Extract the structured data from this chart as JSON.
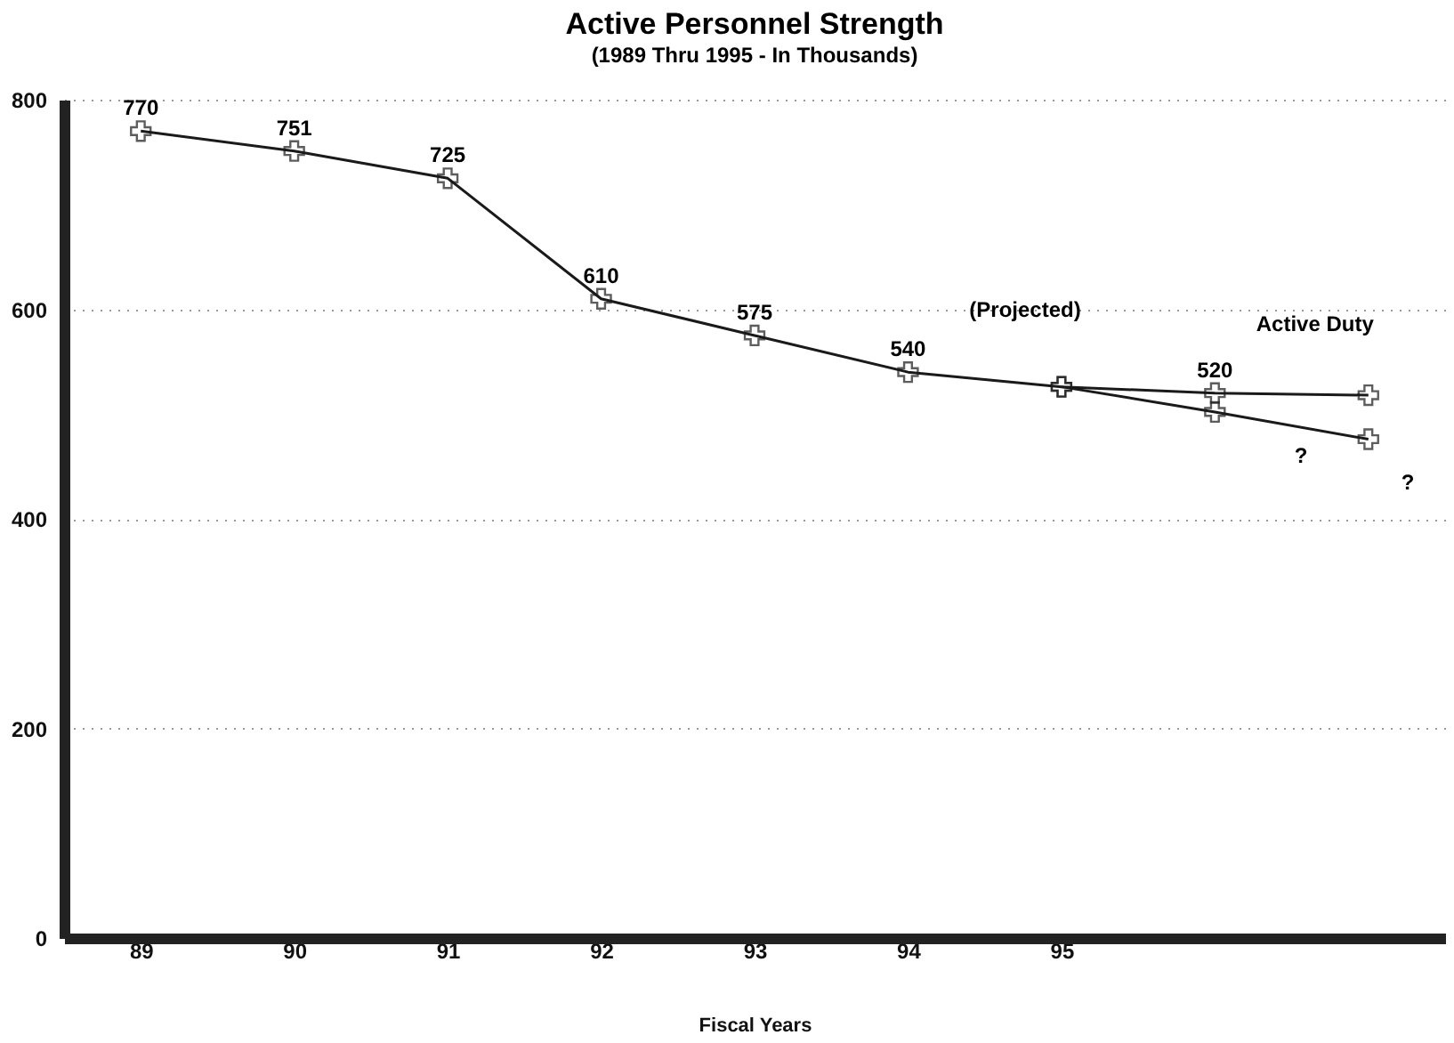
{
  "chart_data": {
    "type": "line",
    "title": "Active Personnel Strength",
    "subtitle": "(1989 Thru 1995 - In Thousands)",
    "xlabel": "Fiscal Years",
    "categories": [
      "89",
      "90",
      "91",
      "92",
      "93",
      "94",
      "95",
      null,
      null
    ],
    "series": [
      {
        "name": "Active Duty",
        "color": "#1a1a1a",
        "values": [
          770,
          751,
          725,
          610,
          575,
          540,
          526,
          520,
          518
        ],
        "value_labels": [
          "770",
          "751",
          "725",
          "610",
          "575",
          "540",
          null,
          "520",
          null
        ]
      },
      {
        "color": "#1a1a1a",
        "values": [
          null,
          null,
          null,
          null,
          null,
          null,
          526,
          502,
          476
        ]
      }
    ],
    "ylim": [
      0,
      800
    ],
    "yticks": [
      0,
      200,
      400,
      600,
      800
    ],
    "grid": "y",
    "marker": "cross",
    "line_style": "solid",
    "legend": false,
    "annotations": [
      "(Projected)",
      "?",
      "?"
    ]
  }
}
